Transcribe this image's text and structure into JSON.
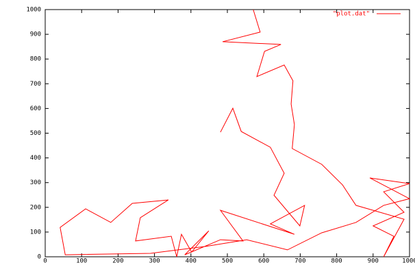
{
  "chart_data": {
    "type": "line",
    "series": [
      {
        "name": "\"plot.dat\"",
        "color": "#ff0000",
        "x": [
          481,
          515,
          538,
          618,
          656,
          628,
          699,
          712,
          618,
          684,
          481,
          543,
          481,
          383,
          449,
          402,
          374,
          361,
          346,
          248,
          261,
          338,
          239,
          180,
          111,
          41,
          55,
          289,
          440,
          553,
          665,
          759,
          853,
          929,
          1000,
          891,
          1000,
          929,
          985,
          900,
          957,
          929,
          985,
          853,
          816,
          759,
          678,
          684,
          675,
          680,
          656,
          581,
          602,
          647,
          487,
          590,
          571
        ],
        "values": [
          504,
          601,
          507,
          443,
          338,
          249,
          125,
          208,
          133,
          91,
          188,
          64,
          69,
          8,
          105,
          19,
          91,
          0,
          83,
          64,
          158,
          230,
          216,
          139,
          194,
          119,
          8,
          14,
          42,
          69,
          28,
          97,
          139,
          208,
          235,
          319,
          296,
          263,
          180,
          125,
          83,
          0,
          152,
          208,
          291,
          374,
          438,
          535,
          618,
          712,
          776,
          729,
          831,
          859,
          870,
          909,
          1000
        ]
      }
    ],
    "xlim": [
      0,
      1000
    ],
    "ylim": [
      0,
      1000
    ],
    "xticks": [
      0,
      100,
      200,
      300,
      400,
      500,
      600,
      700,
      800,
      900,
      1000
    ],
    "yticks": [
      0,
      100,
      200,
      300,
      400,
      500,
      600,
      700,
      800,
      900,
      1000
    ]
  }
}
